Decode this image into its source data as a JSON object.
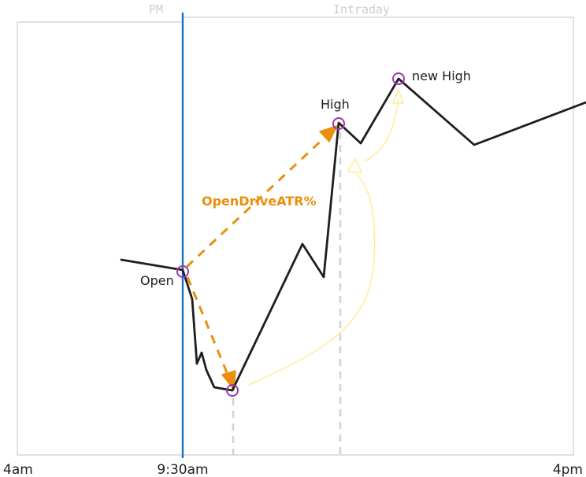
{
  "sections": {
    "premarket": "PM",
    "intraday": "Intraday"
  },
  "axis": {
    "start": "4am",
    "open_time": "9:30am",
    "end": "4pm"
  },
  "points": {
    "open": "Open",
    "high": "High",
    "new_high": "new High"
  },
  "annotation": "OpenDriveATR%",
  "colors": {
    "price_line": "#1e1e1e",
    "open_line": "#1971c2",
    "marker": "#9c36b5",
    "measure": "#e8900c",
    "curve": "#ffec99",
    "frame": "#d6dade",
    "dashed": "#cfd2d6"
  }
}
